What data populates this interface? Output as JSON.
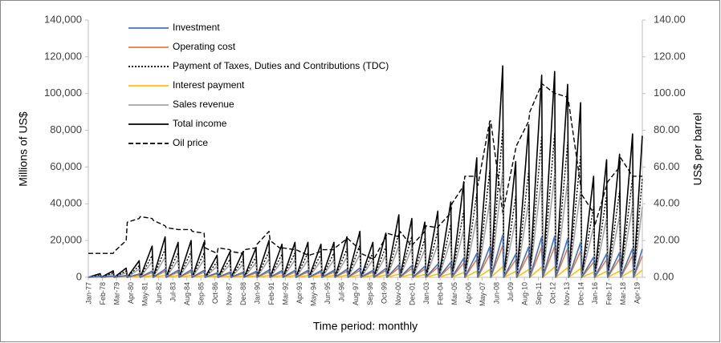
{
  "chart_data": {
    "type": "line",
    "x_label": "Time period:  monthly",
    "y_label": "Millions of US$",
    "y2_label": "US$ per barrel",
    "legend": "upper-left",
    "grid": false,
    "x": [
      0,
      11,
      12,
      23,
      24,
      35,
      36,
      47,
      48,
      59,
      60,
      71,
      72,
      83,
      84,
      95,
      96,
      107,
      108,
      119,
      120,
      131,
      132,
      143,
      144,
      155,
      156,
      167,
      168,
      179,
      180,
      191,
      192,
      203,
      204,
      215,
      216,
      227,
      228,
      239,
      240,
      251,
      252,
      263,
      264,
      275,
      276,
      287,
      288,
      299,
      300,
      311,
      312,
      323,
      324,
      335,
      336,
      347,
      348,
      359,
      360,
      371,
      372,
      383,
      384,
      395,
      396,
      407,
      408,
      419,
      420,
      431,
      432,
      443,
      444,
      455,
      456,
      467,
      468,
      479,
      480,
      491,
      492,
      503,
      504,
      512
    ],
    "xlim": [
      0,
      512
    ],
    "xticks": [
      {
        "value": 0,
        "label": "Jan-77"
      },
      {
        "value": 13,
        "label": "Feb-78"
      },
      {
        "value": 26,
        "label": "Mar-79"
      },
      {
        "value": 39,
        "label": "Apr-80"
      },
      {
        "value": 52,
        "label": "May-81"
      },
      {
        "value": 65,
        "label": "Jun-82"
      },
      {
        "value": 78,
        "label": "Jul-83"
      },
      {
        "value": 91,
        "label": "Aug-84"
      },
      {
        "value": 104,
        "label": "Sep-85"
      },
      {
        "value": 117,
        "label": "Oct-86"
      },
      {
        "value": 130,
        "label": "Nov-87"
      },
      {
        "value": 143,
        "label": "Dec-88"
      },
      {
        "value": 156,
        "label": "Jan-90"
      },
      {
        "value": 169,
        "label": "Feb-91"
      },
      {
        "value": 182,
        "label": "Mar-92"
      },
      {
        "value": 195,
        "label": "Apr-93"
      },
      {
        "value": 208,
        "label": "May-94"
      },
      {
        "value": 221,
        "label": "Jun-95"
      },
      {
        "value": 234,
        "label": "Jul-96"
      },
      {
        "value": 247,
        "label": "Aug-97"
      },
      {
        "value": 260,
        "label": "Sep-98"
      },
      {
        "value": 273,
        "label": "Oct-99"
      },
      {
        "value": 286,
        "label": "Nov-00"
      },
      {
        "value": 299,
        "label": "Dec-01"
      },
      {
        "value": 312,
        "label": "Jan-03"
      },
      {
        "value": 325,
        "label": "Feb-04"
      },
      {
        "value": 338,
        "label": "Mar-05"
      },
      {
        "value": 351,
        "label": "Apr-06"
      },
      {
        "value": 364,
        "label": "May-07"
      },
      {
        "value": 377,
        "label": "Jun-08"
      },
      {
        "value": 390,
        "label": "Jul-09"
      },
      {
        "value": 403,
        "label": "Aug-10"
      },
      {
        "value": 416,
        "label": "Sep-11"
      },
      {
        "value": 429,
        "label": "Oct-12"
      },
      {
        "value": 442,
        "label": "Nov-13"
      },
      {
        "value": 455,
        "label": "Dec-14"
      },
      {
        "value": 468,
        "label": "Jan-16"
      },
      {
        "value": 481,
        "label": "Feb-17"
      },
      {
        "value": 494,
        "label": "Mar-18"
      },
      {
        "value": 507,
        "label": "Apr-19"
      }
    ],
    "ylim": [
      0,
      140000
    ],
    "yticks": [
      0,
      {
        "value": 20000,
        "label": "20,000"
      },
      {
        "value": 40000,
        "label": "40,000"
      },
      {
        "value": 60000,
        "label": "60,000"
      },
      {
        "value": 80000,
        "label": "80,000"
      },
      {
        "value": 100000,
        "label": "100,000"
      },
      {
        "value": 120000,
        "label": "120,000"
      },
      {
        "value": 140000,
        "label": "140,000"
      }
    ],
    "y2lim": [
      0,
      140
    ],
    "y2ticks": [
      {
        "value": 0,
        "label": "0.00"
      },
      {
        "value": 20,
        "label": "20.00"
      },
      {
        "value": 40,
        "label": "40.00"
      },
      {
        "value": 60,
        "label": "60.00"
      },
      {
        "value": 80,
        "label": "80.00"
      },
      {
        "value": 100,
        "label": "100.00"
      },
      {
        "value": 120,
        "label": "120.00"
      },
      {
        "value": 140,
        "label": "140.00"
      }
    ],
    "series": [
      {
        "name": "Investment",
        "color": "#4472c4",
        "style": "solid",
        "values": [
          0,
          400,
          0,
          700,
          0,
          1000,
          0,
          1800,
          0,
          3400,
          0,
          4400,
          0,
          3800,
          0,
          4000,
          0,
          3800,
          0,
          2400,
          0,
          2800,
          0,
          2800,
          0,
          3200,
          0,
          4000,
          0,
          3600,
          0,
          3800,
          0,
          3800,
          0,
          3600,
          0,
          3800,
          0,
          4400,
          0,
          5000,
          0,
          3800,
          0,
          4800,
          0,
          6800,
          0,
          6400,
          0,
          6000,
          0,
          7200,
          0,
          8200,
          0,
          10400,
          0,
          13000,
          0,
          16600,
          0,
          23000,
          0,
          12600,
          0,
          16600,
          0,
          22000,
          0,
          22400,
          0,
          21000,
          0,
          19000,
          0,
          11000,
          0,
          12800,
          0,
          13400,
          0,
          15600,
          0,
          15400
        ]
      },
      {
        "name": "Operating cost",
        "color": "#ed7d31",
        "style": "solid",
        "values": [
          0,
          300,
          0,
          525,
          0,
          750,
          0,
          1350,
          0,
          2550,
          0,
          3300,
          0,
          2850,
          0,
          3000,
          0,
          2850,
          0,
          1800,
          0,
          2100,
          0,
          2100,
          0,
          2400,
          0,
          3000,
          0,
          2700,
          0,
          2850,
          0,
          2850,
          0,
          2700,
          0,
          2850,
          0,
          3300,
          0,
          3750,
          0,
          2850,
          0,
          3600,
          0,
          5100,
          0,
          4800,
          0,
          4500,
          0,
          5400,
          0,
          6150,
          0,
          7800,
          0,
          9750,
          0,
          12450,
          0,
          17250,
          0,
          9450,
          0,
          12450,
          0,
          16500,
          0,
          16800,
          0,
          15750,
          0,
          14250,
          0,
          8250,
          0,
          9600,
          0,
          10050,
          0,
          11700,
          0,
          11550
        ]
      },
      {
        "name": "Payment of Taxes, Duties and Contributions (TDC)",
        "color": "#000000",
        "style": "dotted",
        "values": [
          0,
          1400,
          0,
          2500,
          0,
          3500,
          0,
          6300,
          0,
          11900,
          0,
          15400,
          0,
          13300,
          0,
          14000,
          0,
          13300,
          0,
          8400,
          0,
          9800,
          0,
          9800,
          0,
          11200,
          0,
          14000,
          0,
          12600,
          0,
          13300,
          0,
          13300,
          0,
          12600,
          0,
          13300,
          0,
          15400,
          0,
          17500,
          0,
          13300,
          0,
          16800,
          0,
          23800,
          0,
          22400,
          0,
          21000,
          0,
          25200,
          0,
          28700,
          0,
          36400,
          0,
          45500,
          0,
          58100,
          0,
          80500,
          0,
          44100,
          0,
          58100,
          0,
          77000,
          0,
          78400,
          0,
          73500,
          0,
          66500,
          0,
          38500,
          0,
          44800,
          0,
          46900,
          0,
          54600,
          0,
          53900
        ]
      },
      {
        "name": "Interest payment",
        "color": "#ffc000",
        "style": "solid",
        "values": [
          0,
          100,
          0,
          175,
          0,
          250,
          0,
          450,
          0,
          850,
          0,
          1100,
          0,
          950,
          0,
          1000,
          0,
          950,
          0,
          600,
          0,
          700,
          0,
          700,
          0,
          800,
          0,
          1000,
          0,
          900,
          0,
          950,
          0,
          950,
          0,
          900,
          0,
          950,
          0,
          1100,
          0,
          1250,
          0,
          950,
          0,
          1200,
          0,
          1700,
          0,
          1600,
          0,
          1500,
          0,
          1800,
          0,
          2050,
          0,
          2600,
          0,
          3250,
          0,
          4150,
          0,
          5750,
          0,
          3150,
          0,
          4150,
          0,
          5500,
          0,
          5600,
          0,
          5250,
          0,
          4750,
          0,
          2750,
          0,
          3200,
          0,
          3350,
          0,
          3900,
          0,
          3850
        ]
      },
      {
        "name": "Sales revenue",
        "color": "#a5a5a5",
        "style": "solid",
        "values": [
          0,
          1000,
          0,
          1750,
          0,
          2500,
          0,
          4500,
          0,
          8500,
          0,
          11000,
          0,
          9500,
          0,
          10000,
          0,
          9500,
          0,
          6000,
          0,
          7000,
          0,
          7000,
          0,
          8000,
          0,
          10000,
          0,
          9000,
          0,
          9500,
          0,
          9500,
          0,
          9000,
          0,
          9500,
          0,
          11000,
          0,
          12500,
          0,
          9500,
          0,
          12000,
          0,
          17000,
          0,
          16000,
          0,
          15000,
          0,
          18000,
          0,
          20500,
          0,
          26000,
          0,
          32500,
          0,
          41500,
          0,
          57500,
          0,
          31500,
          0,
          41500,
          0,
          55000,
          0,
          56000,
          0,
          52500,
          0,
          47500,
          0,
          27500,
          0,
          32000,
          0,
          33500,
          0,
          39000,
          0,
          38500
        ]
      },
      {
        "name": "Total income",
        "color": "#000000",
        "style": "solid",
        "values": [
          0,
          2000,
          0,
          3500,
          0,
          5000,
          0,
          9000,
          0,
          17000,
          0,
          22000,
          0,
          19000,
          0,
          20000,
          0,
          19000,
          0,
          12000,
          0,
          14000,
          0,
          14000,
          0,
          16000,
          0,
          20000,
          0,
          18000,
          0,
          19000,
          0,
          19000,
          0,
          18000,
          0,
          19000,
          0,
          22000,
          0,
          25000,
          0,
          19000,
          0,
          24000,
          0,
          34000,
          0,
          32000,
          0,
          30000,
          0,
          36000,
          0,
          41000,
          0,
          52000,
          0,
          65000,
          0,
          83000,
          0,
          115000,
          0,
          63000,
          0,
          83000,
          0,
          110000,
          0,
          112000,
          0,
          105000,
          0,
          95000,
          0,
          55000,
          0,
          64000,
          0,
          67000,
          0,
          78000,
          0,
          77000
        ]
      },
      {
        "name": "Oil price",
        "color": "#000000",
        "style": "dashed",
        "axis": "y2",
        "values": [
          13,
          13,
          13,
          13,
          14,
          20,
          30,
          32,
          33,
          32,
          31,
          28,
          27,
          26,
          26,
          26,
          25,
          24,
          16,
          13,
          16,
          15,
          14,
          13,
          15,
          16,
          18,
          25,
          20,
          15,
          16,
          15,
          15,
          12,
          12,
          14,
          15,
          15,
          16,
          21,
          21,
          15,
          13,
          10,
          10,
          22,
          24,
          22,
          25,
          17,
          18,
          25,
          28,
          27,
          28,
          35,
          40,
          50,
          55,
          55,
          50,
          85,
          85,
          35,
          38,
          70,
          72,
          85,
          90,
          105,
          105,
          100,
          100,
          98,
          95,
          50,
          45,
          35,
          28,
          50,
          52,
          60,
          65,
          55,
          55,
          55
        ]
      }
    ]
  }
}
